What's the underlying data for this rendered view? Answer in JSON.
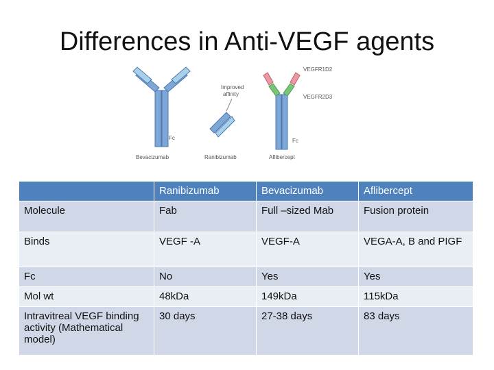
{
  "title": "Differences in Anti-VEGF agents",
  "figure": {
    "labels": {
      "vegfr1d2": "VEGFR1D2",
      "vegfr2d3": "VEGFR2D3",
      "improved": "Improved",
      "affinity": "affinity",
      "fc_bev": "Fc",
      "fc_afl": "Fc",
      "bevacizumab": "Bevacizumab",
      "ranibizumab": "Ranibizumab",
      "aflibercept": "Aflibercept"
    }
  },
  "table": {
    "header": [
      "Ranibizumab",
      "Bevacizumab",
      "Aflibercept"
    ],
    "rows": [
      [
        "Molecule",
        "Fab",
        "Full –sized Mab",
        "Fusion protein"
      ],
      [
        "Binds",
        "VEGF -A",
        "VEGF-A",
        "VEGA-A, B and PIGF"
      ],
      [
        "Fc",
        "No",
        "Yes",
        "Yes"
      ],
      [
        "Mol wt",
        "48kDa",
        "149kDa",
        "115kDa"
      ],
      [
        "Intravitreal VEGF binding activity (Mathematical model)",
        "30 days",
        "27-38 days",
        "83 days"
      ]
    ]
  }
}
